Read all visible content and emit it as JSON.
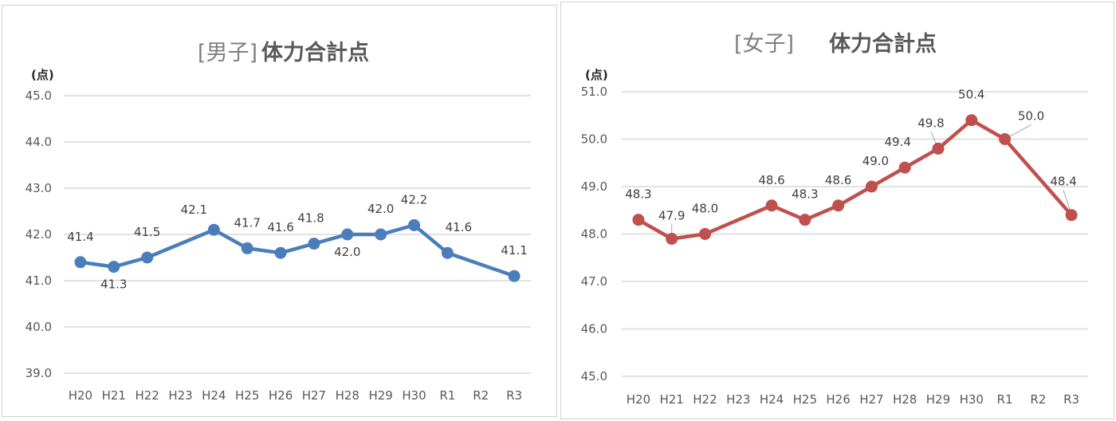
{
  "chart_data": [
    {
      "type": "line",
      "title_bracket": "[男子]",
      "title": "体力合計点",
      "unit_label": "(点)",
      "categories": [
        "H20",
        "H21",
        "H22",
        "H23",
        "H24",
        "H25",
        "H26",
        "H27",
        "H28",
        "H29",
        "H30",
        "R1",
        "R2",
        "R3"
      ],
      "values": [
        41.4,
        41.3,
        41.5,
        null,
        42.1,
        41.7,
        41.6,
        41.8,
        42.0,
        42.0,
        42.2,
        41.6,
        null,
        41.1
      ],
      "data_labels": [
        "41.4",
        "41.3",
        "41.5",
        "",
        "42.1",
        "41.7",
        "41.6",
        "41.8",
        "42.0",
        "42.0",
        "42.2",
        "41.6",
        "",
        "41.1"
      ],
      "ylim": [
        39.0,
        45.0
      ],
      "yticks": [
        "39.0",
        "40.0",
        "41.0",
        "42.0",
        "43.0",
        "44.0",
        "45.0"
      ],
      "grid": true,
      "color": "#4a7ebb"
    },
    {
      "type": "line",
      "title_bracket": "[女子]",
      "title": "体力合計点",
      "unit_label": "(点)",
      "categories": [
        "H20",
        "H21",
        "H22",
        "H23",
        "H24",
        "H25",
        "H26",
        "H27",
        "H28",
        "H29",
        "H30",
        "R1",
        "R2",
        "R3"
      ],
      "values": [
        48.3,
        47.9,
        48.0,
        null,
        48.6,
        48.3,
        48.6,
        49.0,
        49.4,
        49.8,
        50.4,
        50.0,
        null,
        48.4
      ],
      "data_labels": [
        "48.3",
        "47.9",
        "48.0",
        "",
        "48.6",
        "48.3",
        "48.6",
        "49.0",
        "49.4",
        "49.8",
        "50.4",
        "50.0",
        "",
        "48.4"
      ],
      "ylim": [
        45.0,
        51.0
      ],
      "yticks": [
        "45.0",
        "46.0",
        "47.0",
        "48.0",
        "49.0",
        "50.0",
        "51.0"
      ],
      "grid": true,
      "color": "#c0504d"
    }
  ]
}
